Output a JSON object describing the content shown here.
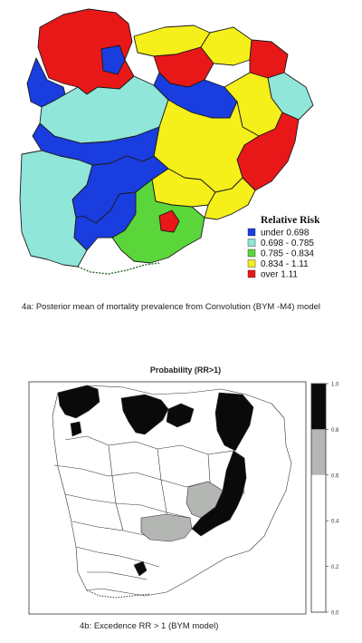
{
  "panel_a": {
    "legend_title": "Relative Risk",
    "legend": [
      {
        "label": "under 0.698",
        "color": "#1a3de0"
      },
      {
        "label": "0.698 - 0.785",
        "color": "#8fe6d9"
      },
      {
        "label": "0.785 - 0.834",
        "color": "#5bd63a"
      },
      {
        "label": "0.834 - 1.11",
        "color": "#f5ef1a"
      },
      {
        "label": "over 1.11",
        "color": "#e81818"
      }
    ],
    "caption": "4a:  Posterior mean of mortality prevalence from Convolution (BYM -M4) model"
  },
  "panel_b": {
    "title": "Probability (RR>1)",
    "colorbar": {
      "ticks": [
        "1.0",
        "0.8",
        "0.6",
        "0.4",
        "0.2",
        "0.0"
      ],
      "bands": [
        {
          "range": [
            0.8,
            1.0
          ],
          "color": "#0a0a0a"
        },
        {
          "range": [
            0.6,
            0.8
          ],
          "color": "#b4b6b4"
        },
        {
          "range": [
            0.4,
            0.6
          ],
          "color": "#ffffff"
        },
        {
          "range": [
            0.2,
            0.4
          ],
          "color": "#ffffff"
        },
        {
          "range": [
            0.0,
            0.2
          ],
          "color": "#ffffff"
        }
      ]
    },
    "caption": "4b:  Excedence RR > 1 (BYM model)"
  }
}
